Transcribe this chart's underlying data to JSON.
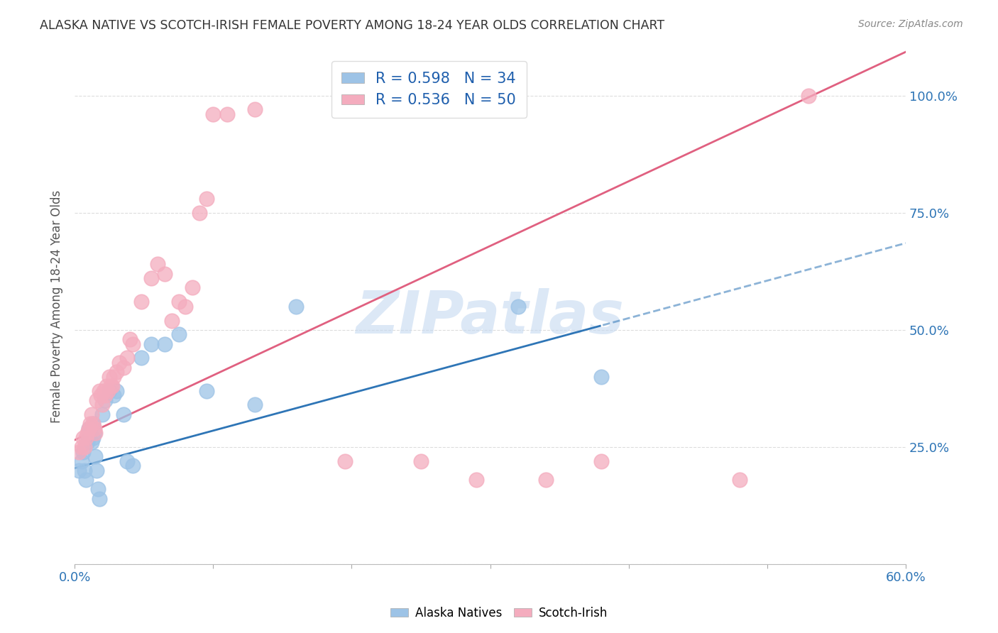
{
  "title": "ALASKA NATIVE VS SCOTCH-IRISH FEMALE POVERTY AMONG 18-24 YEAR OLDS CORRELATION CHART",
  "source": "Source: ZipAtlas.com",
  "ylabel": "Female Poverty Among 18-24 Year Olds",
  "xlim": [
    0.0,
    0.6
  ],
  "ylim": [
    0.0,
    1.1
  ],
  "alaska_R": 0.598,
  "alaska_N": 34,
  "scotch_R": 0.536,
  "scotch_N": 50,
  "legend_labels": [
    "Alaska Natives",
    "Scotch-Irish"
  ],
  "alaska_color": "#9DC3E6",
  "scotch_color": "#F4ACBE",
  "alaska_line_color": "#2E75B6",
  "scotch_line_color": "#E06080",
  "watermark": "ZIPatlas",
  "watermark_color": "#C5D9F1",
  "background_color": "#FFFFFF",
  "grid_color": "#DDDDDD",
  "alaska_x": [
    0.003,
    0.005,
    0.006,
    0.007,
    0.008,
    0.009,
    0.01,
    0.01,
    0.011,
    0.012,
    0.013,
    0.013,
    0.014,
    0.015,
    0.016,
    0.017,
    0.018,
    0.02,
    0.022,
    0.025,
    0.028,
    0.03,
    0.035,
    0.038,
    0.042,
    0.048,
    0.055,
    0.065,
    0.075,
    0.095,
    0.13,
    0.16,
    0.32,
    0.38
  ],
  "alaska_y": [
    0.2,
    0.22,
    0.24,
    0.2,
    0.18,
    0.26,
    0.27,
    0.29,
    0.28,
    0.26,
    0.27,
    0.3,
    0.28,
    0.23,
    0.2,
    0.16,
    0.14,
    0.32,
    0.35,
    0.37,
    0.36,
    0.37,
    0.32,
    0.22,
    0.21,
    0.44,
    0.47,
    0.47,
    0.49,
    0.37,
    0.34,
    0.55,
    0.55,
    0.4
  ],
  "scotch_x": [
    0.003,
    0.005,
    0.006,
    0.007,
    0.008,
    0.009,
    0.01,
    0.011,
    0.012,
    0.013,
    0.014,
    0.015,
    0.016,
    0.018,
    0.019,
    0.02,
    0.021,
    0.022,
    0.023,
    0.024,
    0.025,
    0.026,
    0.027,
    0.028,
    0.03,
    0.032,
    0.035,
    0.038,
    0.04,
    0.042,
    0.048,
    0.055,
    0.06,
    0.065,
    0.07,
    0.075,
    0.08,
    0.085,
    0.09,
    0.095,
    0.1,
    0.11,
    0.13,
    0.195,
    0.25,
    0.29,
    0.34,
    0.38,
    0.48,
    0.53
  ],
  "scotch_y": [
    0.24,
    0.25,
    0.27,
    0.25,
    0.27,
    0.28,
    0.29,
    0.3,
    0.32,
    0.3,
    0.29,
    0.28,
    0.35,
    0.37,
    0.36,
    0.34,
    0.37,
    0.36,
    0.38,
    0.37,
    0.4,
    0.38,
    0.38,
    0.4,
    0.41,
    0.43,
    0.42,
    0.44,
    0.48,
    0.47,
    0.56,
    0.61,
    0.64,
    0.62,
    0.52,
    0.56,
    0.55,
    0.59,
    0.75,
    0.78,
    0.96,
    0.96,
    0.97,
    0.22,
    0.22,
    0.18,
    0.18,
    0.22,
    0.18,
    1.0
  ],
  "alaska_line_intercept": 0.205,
  "alaska_line_slope": 0.8,
  "scotch_line_intercept": 0.265,
  "scotch_line_slope": 1.38
}
